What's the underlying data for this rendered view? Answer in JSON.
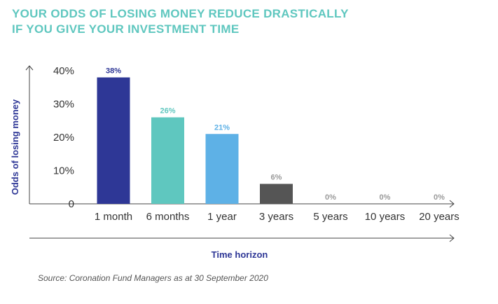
{
  "title_lines": [
    "YOUR ODDS OF LOSING MONEY REDUCE DRASTICALLY",
    "IF YOU GIVE YOUR INVESTMENT TIME"
  ],
  "source": "Source: Coronation Fund Managers as at 30 September 2020",
  "chart_data": {
    "type": "bar",
    "title": "YOUR ODDS OF LOSING MONEY REDUCE DRASTICALLY IF YOU GIVE YOUR INVESTMENT TIME",
    "xlabel": "Time horizon",
    "ylabel": "Odds of losing money",
    "categories": [
      "1 month",
      "6 months",
      "1 year",
      "3 years",
      "5 years",
      "10 years",
      "20 years"
    ],
    "values": [
      38,
      26,
      21,
      6,
      0,
      0,
      0
    ],
    "value_labels": [
      "38%",
      "26%",
      "21%",
      "6%",
      "0%",
      "0%",
      "0%"
    ],
    "ylim": [
      0,
      40
    ],
    "yticks": [
      0,
      10,
      20,
      30,
      40
    ],
    "ytick_labels": [
      "0",
      "10%",
      "20%",
      "30%",
      "40%"
    ],
    "grid": false,
    "colors": {
      "bars": [
        "#2e3796",
        "#5fc7bf",
        "#5eb1e6",
        "#555555",
        "#555555",
        "#555555",
        "#555555"
      ],
      "value_labels": [
        "#2e3796",
        "#5fc7bf",
        "#5eb1e6",
        "#9a9a9a",
        "#9a9a9a",
        "#9a9a9a",
        "#9a9a9a"
      ],
      "axis_title": "#2e3796",
      "title": "#5fc7bf"
    }
  }
}
